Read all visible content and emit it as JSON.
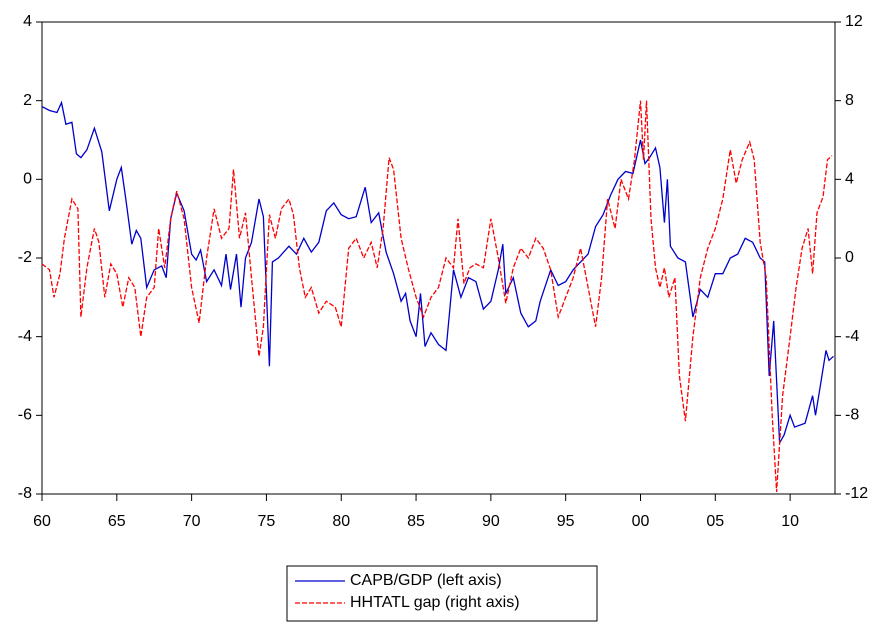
{
  "chart_data": {
    "type": "line",
    "xlim": [
      1960,
      2013
    ],
    "xticks": [
      {
        "value": 1960,
        "label": "60"
      },
      {
        "value": 1965,
        "label": "65"
      },
      {
        "value": 1970,
        "label": "70"
      },
      {
        "value": 1975,
        "label": "75"
      },
      {
        "value": 1980,
        "label": "80"
      },
      {
        "value": 1985,
        "label": "85"
      },
      {
        "value": 1990,
        "label": "90"
      },
      {
        "value": 1995,
        "label": "95"
      },
      {
        "value": 2000,
        "label": "00"
      },
      {
        "value": 2005,
        "label": "05"
      },
      {
        "value": 2010,
        "label": "10"
      }
    ],
    "ylim": [
      -8,
      4
    ],
    "yticks": [
      -8,
      -6,
      -4,
      -2,
      0,
      2,
      4
    ],
    "y2lim": [
      -12,
      12
    ],
    "y2ticks": [
      -12,
      -8,
      -4,
      0,
      4,
      8,
      12
    ],
    "legend": "bottom",
    "series": [
      {
        "name": "CAPB/GDP (left axis)",
        "color": "#0000cc",
        "dash": false,
        "x": [
          1960,
          1960.5,
          1961,
          1961.3,
          1961.6,
          1962,
          1962.3,
          1962.6,
          1963,
          1963.5,
          1964,
          1964.5,
          1965,
          1965.3,
          1965.6,
          1966,
          1966.3,
          1966.6,
          1967,
          1967.5,
          1968,
          1968.3,
          1968.6,
          1969,
          1969.5,
          1970,
          1970.3,
          1970.6,
          1971,
          1971.5,
          1972,
          1972.3,
          1972.6,
          1973,
          1973.3,
          1973.6,
          1974,
          1974.5,
          1974.8,
          1975.2,
          1975.4,
          1975.8,
          1976.5,
          1977,
          1977.5,
          1978,
          1978.5,
          1979,
          1979.5,
          1980,
          1980.5,
          1981,
          1981.6,
          1982,
          1982.5,
          1983,
          1983.5,
          1984,
          1984.3,
          1984.6,
          1985,
          1985.3,
          1985.6,
          1986,
          1986.5,
          1987,
          1987.5,
          1988,
          1988.5,
          1989,
          1989.5,
          1990,
          1990.5,
          1990.8,
          1991,
          1991.5,
          1992,
          1992.5,
          1993,
          1993.3,
          1994,
          1994.5,
          1995,
          1995.5,
          1996,
          1996.5,
          1997,
          1997.5,
          1998,
          1998.5,
          1999,
          1999.5,
          2000,
          2000.3,
          2000.6,
          2001,
          2001.3,
          2001.6,
          2001.8,
          2002,
          2002.5,
          2003,
          2003.5,
          2004,
          2004.5,
          2005,
          2005.5,
          2006,
          2006.5,
          2007,
          2007.5,
          2008,
          2008.3,
          2008.6,
          2008.9,
          2009.3,
          2009.6,
          2010,
          2010.3,
          2011,
          2011.5,
          2011.7,
          2012,
          2012.4,
          2012.6,
          2012.9
        ],
        "values": [
          1.85,
          1.75,
          1.7,
          1.95,
          1.4,
          1.45,
          0.65,
          0.55,
          0.75,
          1.3,
          0.7,
          -0.8,
          0.0,
          0.3,
          -0.5,
          -1.65,
          -1.3,
          -1.5,
          -2.75,
          -2.3,
          -2.2,
          -2.5,
          -1.0,
          -0.35,
          -0.8,
          -1.9,
          -2.05,
          -1.8,
          -2.6,
          -2.3,
          -2.7,
          -1.9,
          -2.8,
          -1.9,
          -3.25,
          -2.0,
          -1.6,
          -0.5,
          -0.95,
          -4.75,
          -2.1,
          -2.0,
          -1.7,
          -1.9,
          -1.5,
          -1.85,
          -1.6,
          -0.8,
          -0.6,
          -0.9,
          -1.0,
          -0.95,
          -0.2,
          -1.1,
          -0.85,
          -1.85,
          -2.4,
          -3.1,
          -2.9,
          -3.6,
          -4.0,
          -2.9,
          -4.25,
          -3.9,
          -4.2,
          -4.35,
          -2.3,
          -3.0,
          -2.5,
          -2.6,
          -3.3,
          -3.1,
          -2.3,
          -1.65,
          -2.9,
          -2.5,
          -3.4,
          -3.75,
          -3.6,
          -3.1,
          -2.3,
          -2.7,
          -2.6,
          -2.3,
          -2.1,
          -1.9,
          -1.2,
          -0.9,
          -0.4,
          0.0,
          0.2,
          0.15,
          1.0,
          0.4,
          0.55,
          0.8,
          0.3,
          -1.1,
          0.0,
          -1.7,
          -2.0,
          -2.1,
          -3.5,
          -2.8,
          -3.0,
          -2.4,
          -2.4,
          -2.0,
          -1.9,
          -1.5,
          -1.6,
          -2.0,
          -2.1,
          -5.0,
          -3.6,
          -6.7,
          -6.5,
          -6.0,
          -6.3,
          -6.2,
          -5.5,
          -6.0,
          -5.3,
          -4.35,
          -4.6,
          -4.5
        ]
      },
      {
        "name": "HHTATL gap (right axis)",
        "color": "#ff0000",
        "dash": true,
        "axis": "y2",
        "x": [
          1960,
          1960.5,
          1960.8,
          1961.2,
          1961.5,
          1962,
          1962.4,
          1962.6,
          1963,
          1963.5,
          1963.8,
          1964.2,
          1964.6,
          1965,
          1965.4,
          1965.8,
          1966.2,
          1966.6,
          1967,
          1967.5,
          1967.8,
          1968.2,
          1968.6,
          1969,
          1969.5,
          1970,
          1970.5,
          1971,
          1971.5,
          1972,
          1972.5,
          1972.8,
          1973.2,
          1973.6,
          1974,
          1974.5,
          1974.8,
          1975.2,
          1975.6,
          1976,
          1976.5,
          1976.8,
          1977.2,
          1977.6,
          1978,
          1978.5,
          1979,
          1979.6,
          1980,
          1980.5,
          1981,
          1981.5,
          1982,
          1982.4,
          1982.8,
          1983.2,
          1983.5,
          1984,
          1984.5,
          1985,
          1985.5,
          1986,
          1986.5,
          1987,
          1987.5,
          1987.8,
          1988.2,
          1988.6,
          1989,
          1989.5,
          1990,
          1990.5,
          1991,
          1991.5,
          1992,
          1992.5,
          1993,
          1993.5,
          1994,
          1994.5,
          1995,
          1995.5,
          1996,
          1996.5,
          1997,
          1997.4,
          1997.8,
          1998.3,
          1998.7,
          1999.2,
          1999.6,
          2000,
          2000.2,
          2000.4,
          2000.7,
          2001,
          2001.3,
          2001.6,
          2001.9,
          2002.3,
          2002.6,
          2003,
          2003.5,
          2004,
          2004.5,
          2005,
          2005.5,
          2006,
          2006.4,
          2006.8,
          2007.3,
          2007.6,
          2008,
          2008.4,
          2008.8,
          2009.1,
          2009.5,
          2010,
          2010.4,
          2010.8,
          2011.2,
          2011.5,
          2011.8,
          2012.2,
          2012.5,
          2012.8
        ],
        "values": [
          -0.3,
          -0.6,
          -2.0,
          -0.8,
          1.0,
          3.0,
          2.5,
          -3.0,
          -0.5,
          1.5,
          0.8,
          -2.0,
          -0.3,
          -0.8,
          -2.5,
          -1.0,
          -1.5,
          -4.0,
          -2.0,
          -1.5,
          1.5,
          -0.5,
          2.0,
          3.4,
          2.0,
          -1.5,
          -3.3,
          0.0,
          2.5,
          1.0,
          1.5,
          4.5,
          1.0,
          2.3,
          -1.0,
          -5.0,
          -3.5,
          2.2,
          1.0,
          2.5,
          3.0,
          2.2,
          -0.5,
          -2.0,
          -1.5,
          -2.8,
          -2.2,
          -2.5,
          -3.5,
          0.5,
          1.0,
          0.0,
          0.8,
          -0.5,
          1.5,
          5.1,
          4.5,
          1.0,
          -0.6,
          -2.0,
          -3.0,
          -2.0,
          -1.5,
          0.0,
          -0.5,
          2.0,
          -1.3,
          -0.5,
          -0.3,
          -0.5,
          2.0,
          0.0,
          -2.3,
          -0.5,
          0.5,
          0.0,
          1.0,
          0.5,
          -0.6,
          -3.0,
          -2.0,
          -1.0,
          0.5,
          -1.5,
          -3.5,
          -1.0,
          3.0,
          1.5,
          4.0,
          3.0,
          5.0,
          8.0,
          5.0,
          8.0,
          2.0,
          -0.5,
          -1.5,
          -0.5,
          -2.0,
          -1.0,
          -6.0,
          -8.3,
          -4.0,
          -1.0,
          0.5,
          1.5,
          3.0,
          5.5,
          3.8,
          5.0,
          5.9,
          5.0,
          0.8,
          -1.0,
          -8.0,
          -11.9,
          -7.0,
          -4.0,
          -1.5,
          0.5,
          1.5,
          -0.8,
          2.3,
          3.1,
          5.0,
          5.2
        ]
      }
    ]
  }
}
